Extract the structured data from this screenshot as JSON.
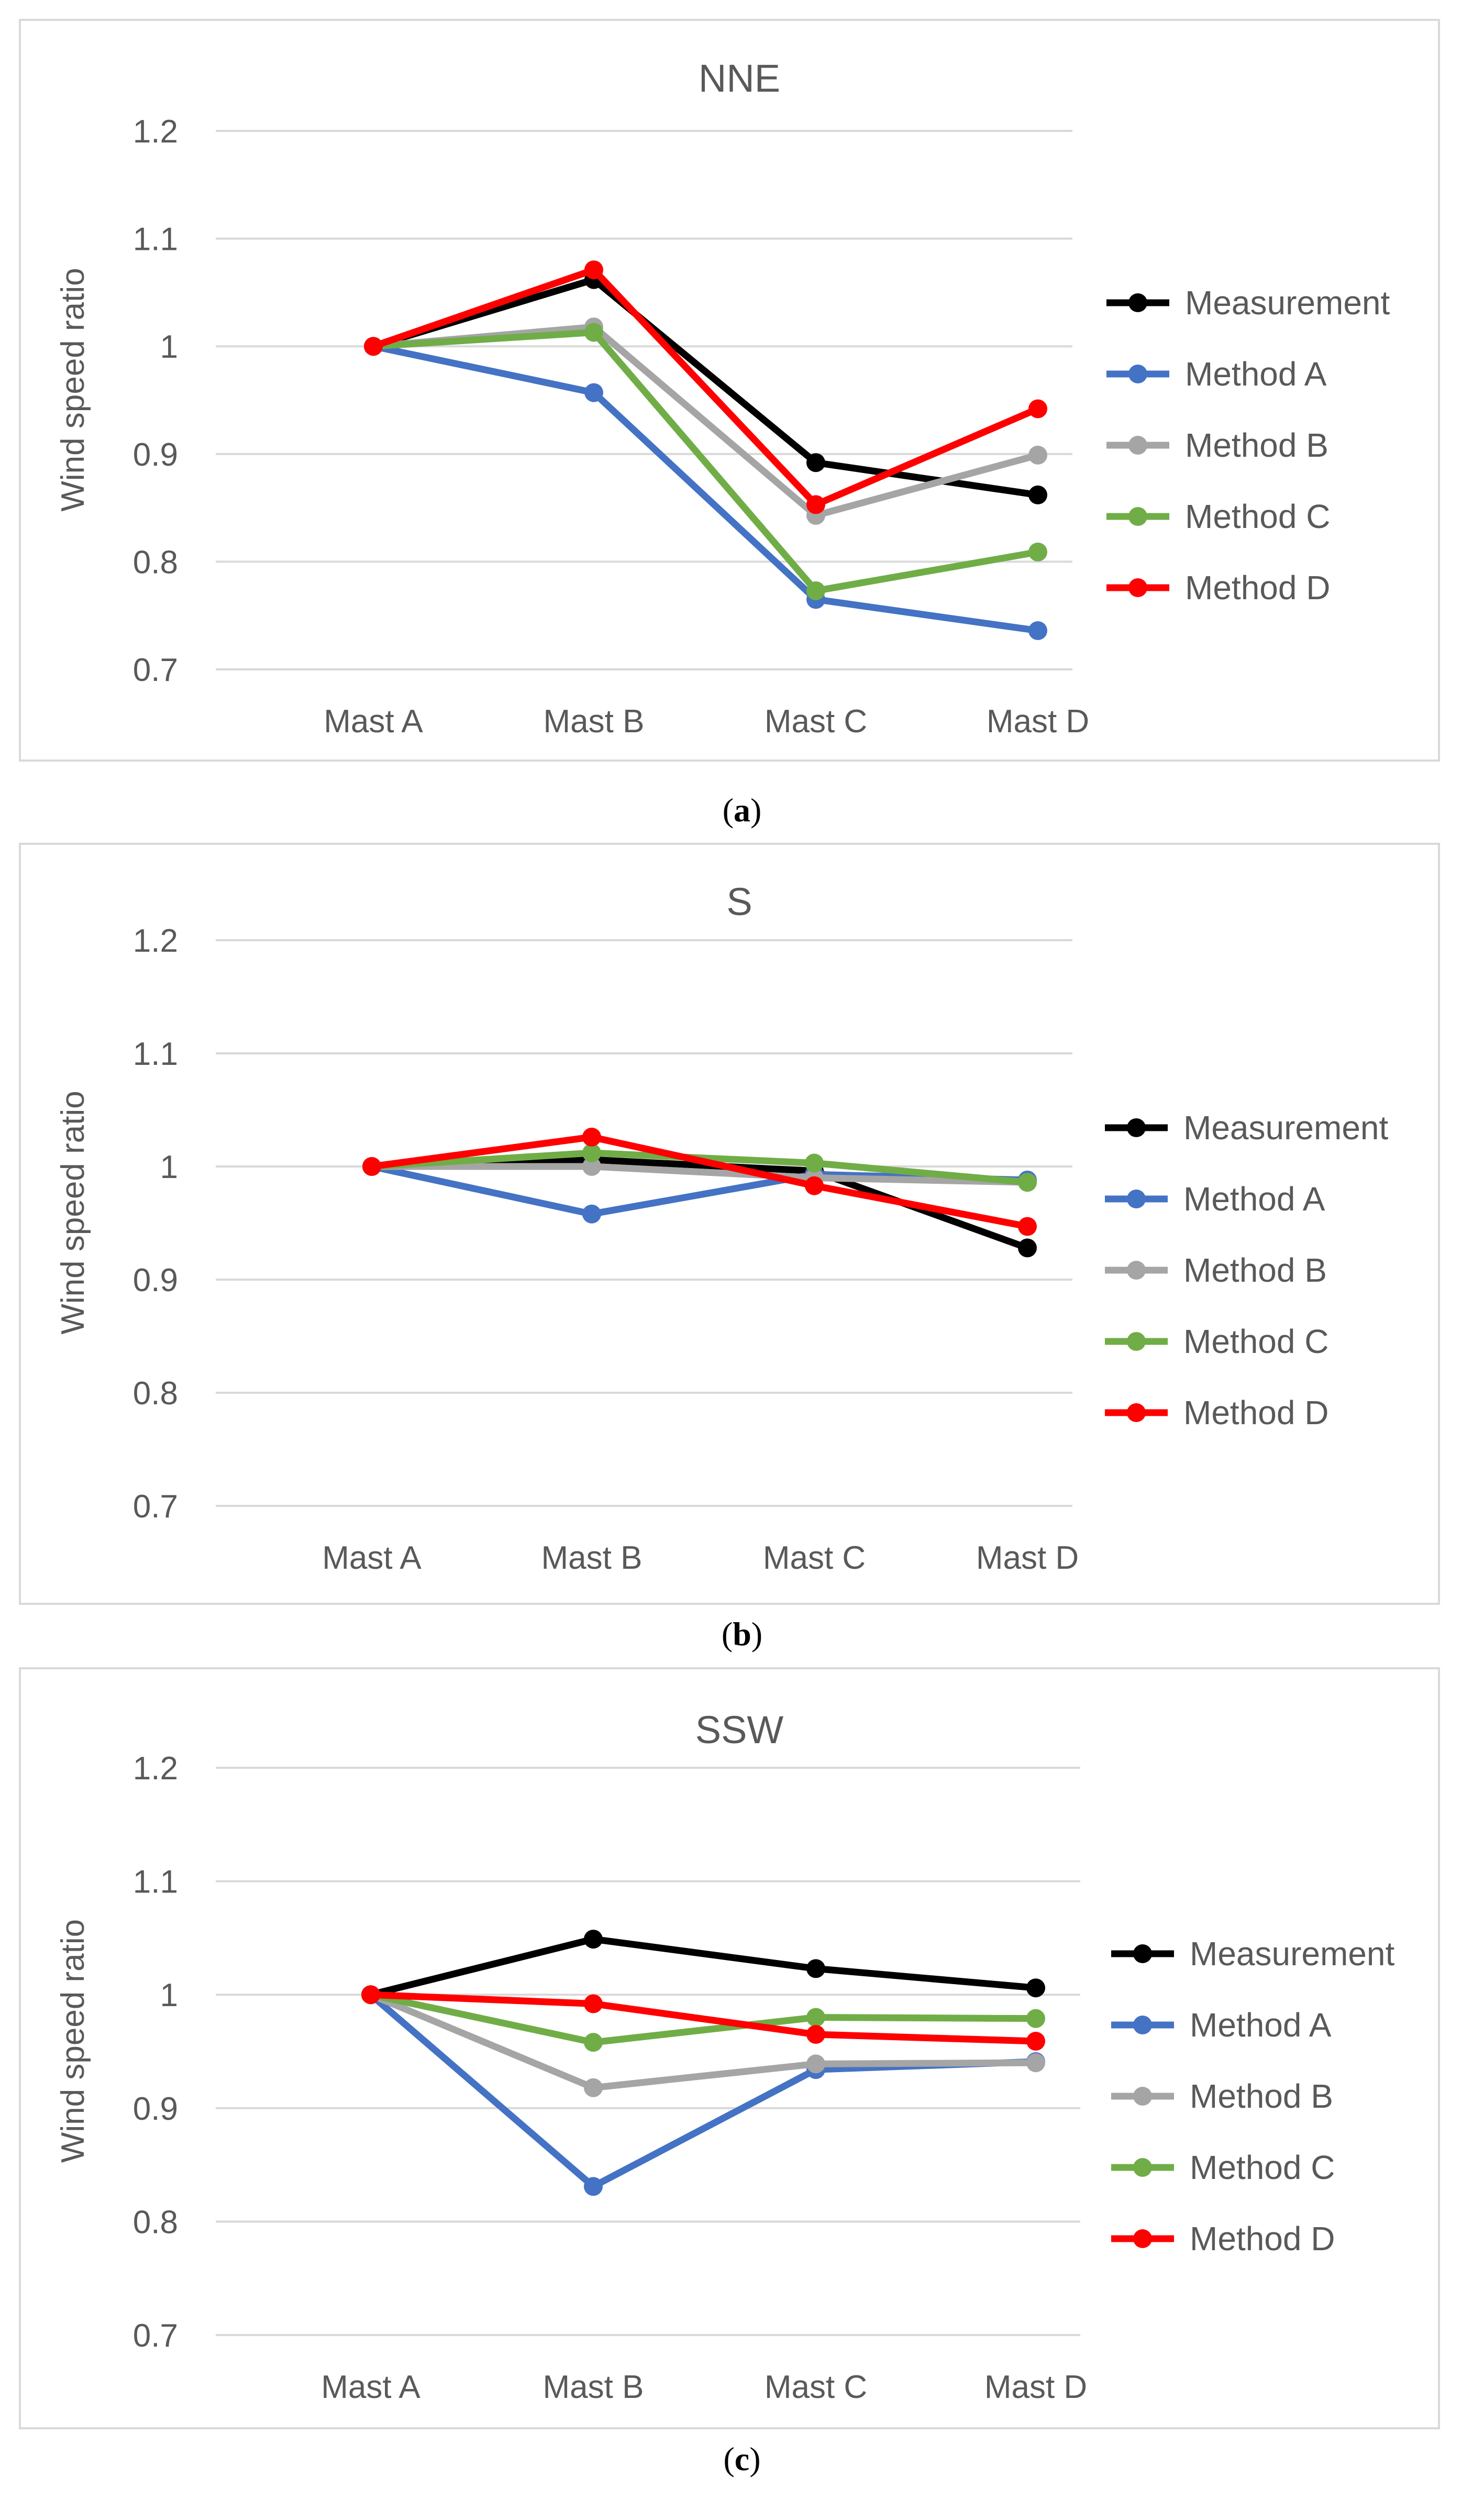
{
  "chart_data": [
    {
      "type": "line",
      "title": "NNE",
      "ylabel": "Wind speed ratio",
      "xlabel": "",
      "ylim": [
        0.7,
        1.2
      ],
      "yticks": [
        "0.7",
        "0.8",
        "0.9",
        "1",
        "1.1",
        "1.2"
      ],
      "categories": [
        "Mast A",
        "Mast B",
        "Mast C",
        "Mast D"
      ],
      "grid": true,
      "legend_position": "right",
      "caption": {
        "open": "(",
        "letter": "a",
        "close": ")"
      },
      "series": [
        {
          "name": "Measurement",
          "color": "#000000",
          "values": [
            1.0,
            1.062,
            0.892,
            0.862
          ]
        },
        {
          "name": "Method A",
          "color": "#4472C4",
          "values": [
            1.0,
            0.957,
            0.765,
            0.736
          ]
        },
        {
          "name": "Method B",
          "color": "#A5A5A5",
          "values": [
            1.0,
            1.018,
            0.843,
            0.899
          ]
        },
        {
          "name": "Method C",
          "color": "#70AD47",
          "values": [
            1.0,
            1.013,
            0.773,
            0.809
          ]
        },
        {
          "name": "Method D",
          "color": "#FF0000",
          "values": [
            1.0,
            1.071,
            0.853,
            0.942
          ]
        }
      ]
    },
    {
      "type": "line",
      "title": "S",
      "ylabel": "Wind speed ratio",
      "xlabel": "",
      "ylim": [
        0.7,
        1.2
      ],
      "yticks": [
        "0.7",
        "0.8",
        "0.9",
        "1",
        "1.1",
        "1.2"
      ],
      "categories": [
        "Mast A",
        "Mast B",
        "Mast C",
        "Mast D"
      ],
      "grid": true,
      "legend_position": "right",
      "caption": {
        "open": "(",
        "letter": "b",
        "close": ")"
      },
      "series": [
        {
          "name": "Measurement",
          "color": "#000000",
          "values": [
            1.0,
            1.006,
            0.996,
            0.928
          ]
        },
        {
          "name": "Method A",
          "color": "#4472C4",
          "values": [
            1.0,
            0.958,
            0.993,
            0.988
          ]
        },
        {
          "name": "Method B",
          "color": "#A5A5A5",
          "values": [
            1.0,
            1.0,
            0.99,
            0.986
          ]
        },
        {
          "name": "Method C",
          "color": "#70AD47",
          "values": [
            1.0,
            1.012,
            1.003,
            0.986
          ]
        },
        {
          "name": "Method D",
          "color": "#FF0000",
          "values": [
            1.0,
            1.026,
            0.983,
            0.947
          ]
        }
      ]
    },
    {
      "type": "line",
      "title": "SSW",
      "ylabel": "Wind speed ratio",
      "xlabel": "",
      "ylim": [
        0.7,
        1.2
      ],
      "yticks": [
        "0.7",
        "0.8",
        "0.9",
        "1",
        "1.1",
        "1.2"
      ],
      "categories": [
        "Mast A",
        "Mast B",
        "Mast C",
        "Mast D"
      ],
      "grid": true,
      "legend_position": "right",
      "caption": {
        "open": "(",
        "letter": "c",
        "close": ")"
      },
      "series": [
        {
          "name": "Measurement",
          "color": "#000000",
          "values": [
            1.0,
            1.049,
            1.023,
            1.006
          ]
        },
        {
          "name": "Method A",
          "color": "#4472C4",
          "values": [
            1.0,
            0.831,
            0.934,
            0.941
          ]
        },
        {
          "name": "Method B",
          "color": "#A5A5A5",
          "values": [
            1.0,
            0.918,
            0.939,
            0.94
          ]
        },
        {
          "name": "Method C",
          "color": "#70AD47",
          "values": [
            1.0,
            0.958,
            0.98,
            0.979
          ]
        },
        {
          "name": "Method D",
          "color": "#FF0000",
          "values": [
            1.0,
            0.992,
            0.965,
            0.959
          ]
        }
      ]
    }
  ]
}
